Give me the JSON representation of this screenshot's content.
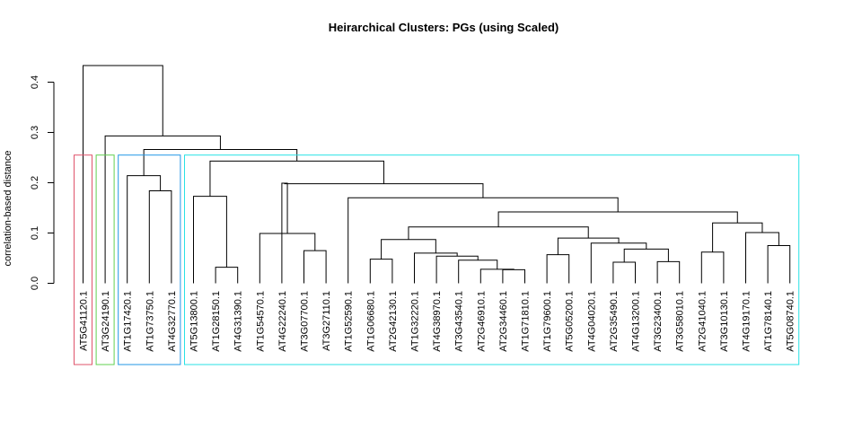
{
  "chart_data": {
    "type": "dendrogram",
    "title": "Heirarchical Clusters: PGs (using Scaled)",
    "ylabel": "correlation-based distance",
    "ylim": [
      0,
      0.45
    ],
    "yticks": [
      0.0,
      0.1,
      0.2,
      0.3,
      0.4
    ],
    "ytick_labels": [
      "0.0",
      "0.1",
      "0.2",
      "0.3",
      "0.4"
    ],
    "leaves": [
      "AT5G41120.1",
      "AT3G24190.1",
      "AT1G17420.1",
      "AT1G73750.1",
      "AT4G32770.1",
      "AT5G13800.1",
      "AT1G28150.1",
      "AT4G31390.1",
      "AT1G54570.1",
      "AT4G22240.1",
      "AT3G07700.1",
      "AT3G27110.1",
      "AT1G52590.1",
      "AT1G06680.1",
      "AT2G42130.1",
      "AT1G32220.1",
      "AT4G38970.1",
      "AT3G43540.1",
      "AT2G46910.1",
      "AT2G34460.1",
      "AT1G71810.1",
      "AT1G79600.1",
      "AT5G05200.1",
      "AT4G04020.1",
      "AT2G35490.1",
      "AT4G13200.1",
      "AT3G23400.1",
      "AT3G58010.1",
      "AT2G41040.1",
      "AT3G10130.1",
      "AT4G19170.1",
      "AT1G78140.1",
      "AT5G08740.1"
    ],
    "merges": [
      [
        19,
        20,
        0.027
      ],
      [
        18,
        "m0",
        0.028
      ],
      [
        6,
        7,
        0.032
      ],
      [
        24,
        25,
        0.042
      ],
      [
        26,
        27,
        0.043
      ],
      [
        17,
        "m1",
        0.046
      ],
      [
        13,
        14,
        0.048
      ],
      [
        16,
        "m5",
        0.054
      ],
      [
        21,
        22,
        0.057
      ],
      [
        15,
        "m7",
        0.06
      ],
      [
        28,
        29,
        0.062
      ],
      [
        10,
        11,
        0.065
      ],
      [
        "m3",
        "m4",
        0.068
      ],
      [
        31,
        32,
        0.075
      ],
      [
        23,
        "m12",
        0.08
      ],
      [
        "m6",
        "m9",
        0.087
      ],
      [
        "m8",
        "m14",
        0.09
      ],
      [
        8,
        "m11",
        0.099
      ],
      [
        30,
        "m13",
        0.101
      ],
      [
        "m15",
        "m16",
        0.112
      ],
      [
        "m10",
        "m18",
        0.12
      ],
      [
        "m19",
        "m20",
        0.142
      ],
      [
        12,
        "m21",
        0.17
      ],
      [
        5,
        "m2",
        0.173
      ],
      [
        3,
        4,
        0.184
      ],
      [
        "m17",
        9,
        0.199
      ],
      [
        2,
        "m24",
        0.214
      ],
      [
        "m25",
        "m22",
        0.198
      ],
      [
        "m23",
        "m27",
        0.243
      ],
      [
        "m26",
        "m28",
        0.266
      ],
      [
        1,
        "m29",
        0.293
      ],
      [
        0,
        "m30",
        0.433
      ]
    ],
    "clusters": [
      {
        "from": 0,
        "to": 0,
        "color": "#DF536B"
      },
      {
        "from": 1,
        "to": 1,
        "color": "#61D04F"
      },
      {
        "from": 2,
        "to": 4,
        "color": "#2297E6"
      },
      {
        "from": 5,
        "to": 32,
        "color": "#28E2E5"
      }
    ],
    "cluster_box_top": 0.255
  }
}
